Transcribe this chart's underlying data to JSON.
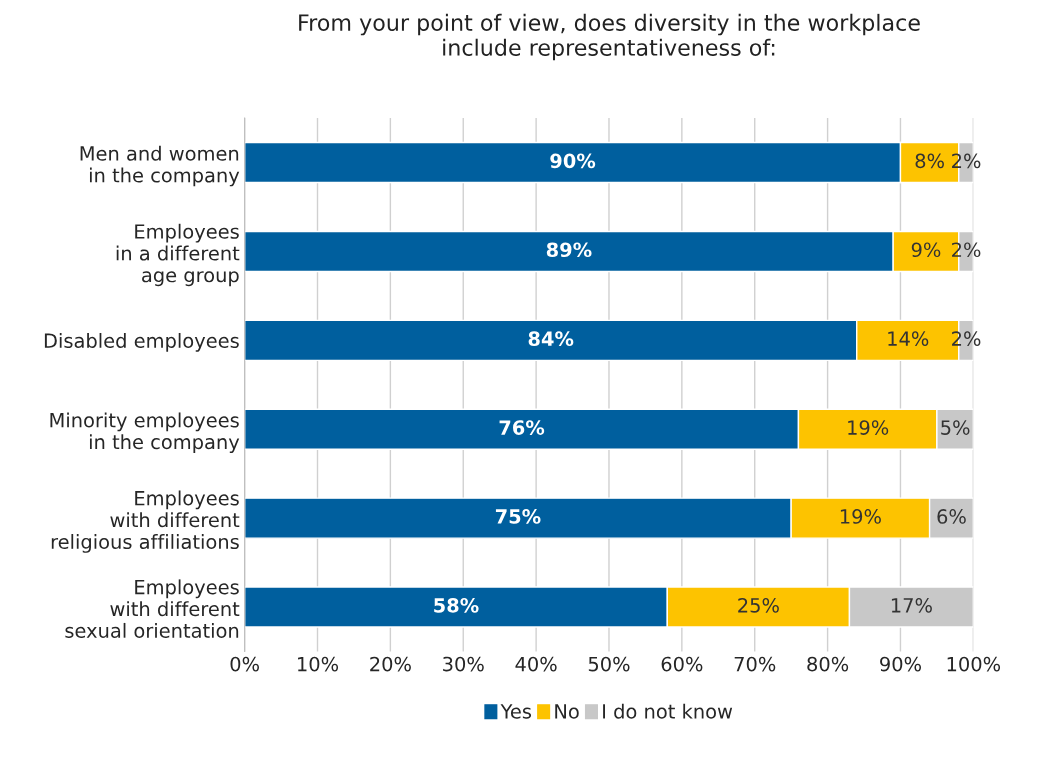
{
  "chart_data": {
    "type": "bar",
    "orientation": "horizontal",
    "stacked": true,
    "title": "From your point of view, does diversity in the workplace\ninclude representativeness of:",
    "categories": [
      "Men and women\nin the company",
      "Employees\nin a different\nage group",
      "Disabled employees",
      "Minority employees\nin the company",
      "Employees\nwith different\nreligious affiliations",
      "Employees\nwith different\nsexual orientation"
    ],
    "series": [
      {
        "name": "Yes",
        "color": "#005f9e",
        "values": [
          90,
          89,
          84,
          76,
          75,
          58
        ],
        "value_labels": [
          "90%",
          "89%",
          "84%",
          "76%",
          "75%",
          "58%"
        ]
      },
      {
        "name": "No",
        "color": "#fdc300",
        "values": [
          8,
          9,
          14,
          19,
          19,
          25
        ],
        "value_labels": [
          "8%",
          "9%",
          "14%",
          "19%",
          "19%",
          "25%"
        ]
      },
      {
        "name": "I do not know",
        "color": "#c8c8c8",
        "values": [
          2,
          2,
          2,
          5,
          6,
          17
        ],
        "value_labels": [
          "2%",
          "2%",
          "2%",
          "5%",
          "6%",
          "17%"
        ]
      }
    ],
    "xlim": [
      0,
      100
    ],
    "xticks": [
      {
        "value": 0,
        "label": "0%"
      },
      {
        "value": 10,
        "label": "10%"
      },
      {
        "value": 20,
        "label": "20%"
      },
      {
        "value": 30,
        "label": "30%"
      },
      {
        "value": 40,
        "label": "40%"
      },
      {
        "value": 50,
        "label": "50%"
      },
      {
        "value": 60,
        "label": "60%"
      },
      {
        "value": 70,
        "label": "70%"
      },
      {
        "value": 80,
        "label": "80%"
      },
      {
        "value": 90,
        "label": "90%"
      },
      {
        "value": 100,
        "label": "100%"
      }
    ],
    "grid": "x",
    "legend": "bottom"
  }
}
